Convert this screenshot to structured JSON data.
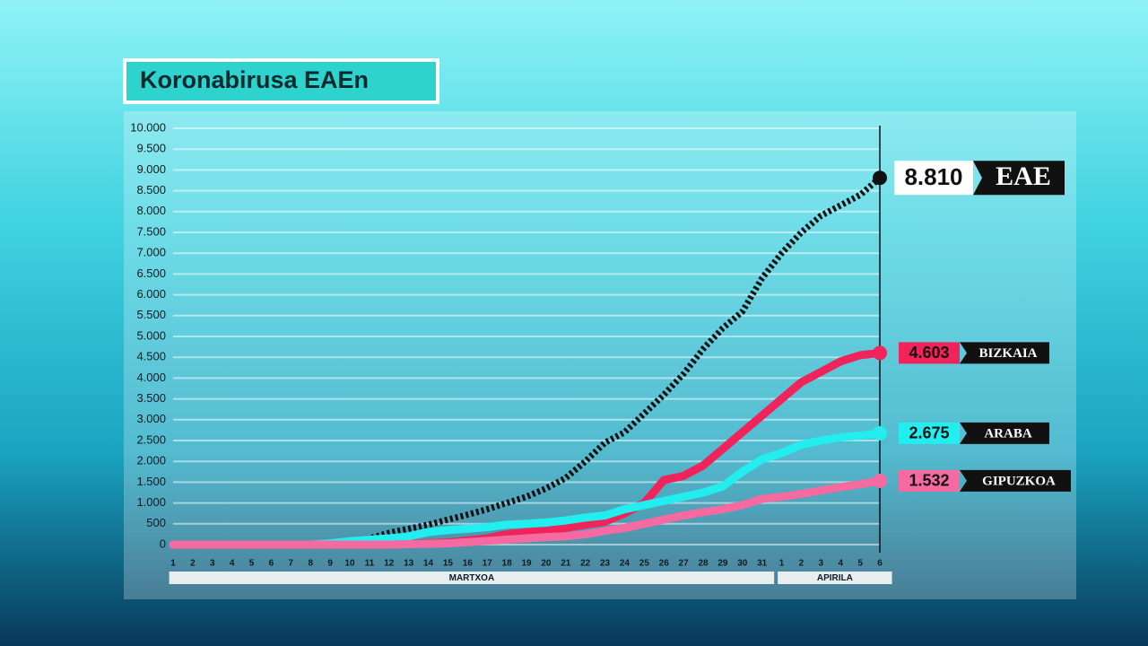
{
  "chart_data": {
    "type": "line",
    "title": "Koronabirusa EAEn",
    "categories": [
      "1",
      "2",
      "3",
      "4",
      "5",
      "6",
      "7",
      "8",
      "9",
      "10",
      "11",
      "12",
      "13",
      "14",
      "15",
      "16",
      "17",
      "18",
      "19",
      "20",
      "21",
      "22",
      "23",
      "24",
      "25",
      "26",
      "27",
      "28",
      "29",
      "30",
      "31",
      "1",
      "2",
      "3",
      "4",
      "5",
      "6"
    ],
    "months": [
      "MARTXOA",
      "APIRILA"
    ],
    "ylim": [
      0,
      10000
    ],
    "yticks": [
      0,
      500,
      {
        "value": 1000,
        "label": "1.000"
      },
      {
        "value": 1500,
        "label": "1.500"
      },
      {
        "value": 2000,
        "label": "2.000"
      },
      {
        "value": 2500,
        "label": "2.500"
      },
      {
        "value": 3000,
        "label": "3.000"
      },
      {
        "value": 3500,
        "label": "3.500"
      },
      {
        "value": 4000,
        "label": "4.000"
      },
      {
        "value": 4500,
        "label": "4.500"
      },
      {
        "value": 5000,
        "label": "5.000"
      },
      {
        "value": 5500,
        "label": "5.500"
      },
      {
        "value": 6000,
        "label": "6.000"
      },
      {
        "value": 6500,
        "label": "6.500"
      },
      {
        "value": 7000,
        "label": "7.000"
      },
      {
        "value": 7500,
        "label": "7.500"
      },
      {
        "value": 8000,
        "label": "8.000"
      },
      {
        "value": 8500,
        "label": "8.500"
      },
      {
        "value": 9000,
        "label": "9.000"
      },
      {
        "value": 9500,
        "label": "9.500"
      },
      {
        "value": 10000,
        "label": "10.000"
      }
    ],
    "grid": true,
    "series": [
      {
        "name": "EAE",
        "color": "#111111",
        "dashed": true,
        "values": [
          0,
          0,
          0,
          0,
          0,
          0,
          0,
          0,
          10,
          50,
          150,
          280,
          380,
          480,
          600,
          720,
          850,
          1000,
          1150,
          1350,
          1600,
          2000,
          2450,
          2700,
          3150,
          3600,
          4100,
          4700,
          5200,
          5600,
          6400,
          7000,
          7500,
          7900,
          8150,
          8400,
          8810
        ],
        "value_labels": [
          null,
          null,
          null,
          null,
          null,
          null,
          null,
          null,
          null,
          null,
          null,
          null,
          null,
          null,
          null,
          null,
          null,
          null,
          null,
          null,
          null,
          null,
          null,
          null,
          null,
          null,
          null,
          null,
          null,
          null,
          null,
          null,
          null,
          null,
          null,
          null,
          "8.810"
        ]
      },
      {
        "name": "BIZKAIA",
        "color": "#f0245a",
        "values": [
          0,
          0,
          0,
          0,
          0,
          0,
          0,
          0,
          0,
          0,
          0,
          10,
          20,
          30,
          50,
          100,
          150,
          250,
          300,
          330,
          400,
          480,
          550,
          750,
          1000,
          1550,
          1650,
          1900,
          2300,
          2700,
          3100,
          3500,
          3900,
          4150,
          4400,
          4550,
          4603
        ],
        "value_labels": [
          null,
          null,
          null,
          null,
          null,
          null,
          null,
          null,
          null,
          null,
          null,
          null,
          null,
          null,
          null,
          null,
          null,
          null,
          null,
          null,
          null,
          null,
          null,
          null,
          null,
          null,
          null,
          null,
          null,
          null,
          null,
          null,
          null,
          null,
          null,
          null,
          "4.603"
        ]
      },
      {
        "name": "ARABA",
        "color": "#22eef0",
        "values": [
          0,
          0,
          0,
          0,
          0,
          0,
          0,
          0,
          30,
          80,
          120,
          150,
          200,
          300,
          350,
          380,
          420,
          480,
          500,
          530,
          580,
          650,
          700,
          850,
          950,
          1050,
          1150,
          1250,
          1400,
          1750,
          2050,
          2200,
          2400,
          2500,
          2580,
          2620,
          2675
        ],
        "value_labels": [
          null,
          null,
          null,
          null,
          null,
          null,
          null,
          null,
          null,
          null,
          null,
          null,
          null,
          null,
          null,
          null,
          null,
          null,
          null,
          null,
          null,
          null,
          null,
          null,
          null,
          null,
          null,
          null,
          null,
          null,
          null,
          null,
          null,
          null,
          null,
          null,
          "2.675"
        ]
      },
      {
        "name": "GIPUZKOA",
        "color": "#f56aa0",
        "values": [
          0,
          0,
          0,
          0,
          0,
          0,
          0,
          0,
          0,
          0,
          0,
          0,
          10,
          20,
          30,
          60,
          90,
          120,
          150,
          180,
          200,
          250,
          330,
          400,
          500,
          600,
          700,
          780,
          850,
          950,
          1100,
          1150,
          1220,
          1300,
          1380,
          1450,
          1532
        ],
        "value_labels": [
          null,
          null,
          null,
          null,
          null,
          null,
          null,
          null,
          null,
          null,
          null,
          null,
          null,
          null,
          null,
          null,
          null,
          null,
          null,
          null,
          null,
          null,
          null,
          null,
          null,
          null,
          null,
          null,
          null,
          null,
          null,
          null,
          null,
          null,
          null,
          null,
          "1.532"
        ]
      }
    ]
  }
}
